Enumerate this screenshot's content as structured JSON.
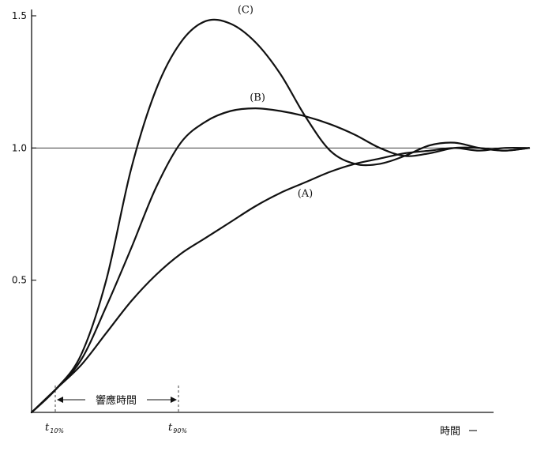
{
  "chart_data": {
    "type": "line",
    "xlabel": "時間",
    "ylabel": "",
    "ylim": [
      0,
      1.5
    ],
    "y_ticks": [
      {
        "value": 0.5,
        "label": "0.5"
      },
      {
        "value": 1.0,
        "label": "1.0"
      },
      {
        "value": 1.5,
        "label": "1.5"
      }
    ],
    "reference_line": 1.0,
    "series": [
      {
        "name": "(A)",
        "points": [
          [
            0,
            0
          ],
          [
            0.05,
            0.09
          ],
          [
            0.1,
            0.18
          ],
          [
            0.15,
            0.3
          ],
          [
            0.2,
            0.42
          ],
          [
            0.25,
            0.52
          ],
          [
            0.3,
            0.6
          ],
          [
            0.35,
            0.66
          ],
          [
            0.4,
            0.72
          ],
          [
            0.45,
            0.78
          ],
          [
            0.5,
            0.83
          ],
          [
            0.55,
            0.87
          ],
          [
            0.6,
            0.91
          ],
          [
            0.65,
            0.94
          ],
          [
            0.7,
            0.96
          ],
          [
            0.75,
            0.98
          ],
          [
            0.8,
            0.99
          ],
          [
            0.85,
            1.0
          ],
          [
            0.9,
            0.99
          ],
          [
            0.95,
            1.0
          ],
          [
            1.0,
            1.0
          ]
        ]
      },
      {
        "name": "(B)",
        "points": [
          [
            0,
            0
          ],
          [
            0.05,
            0.09
          ],
          [
            0.1,
            0.2
          ],
          [
            0.15,
            0.4
          ],
          [
            0.2,
            0.62
          ],
          [
            0.25,
            0.85
          ],
          [
            0.3,
            1.02
          ],
          [
            0.35,
            1.1
          ],
          [
            0.4,
            1.14
          ],
          [
            0.45,
            1.15
          ],
          [
            0.5,
            1.14
          ],
          [
            0.55,
            1.12
          ],
          [
            0.6,
            1.09
          ],
          [
            0.65,
            1.05
          ],
          [
            0.7,
            1.0
          ],
          [
            0.75,
            0.97
          ],
          [
            0.8,
            0.98
          ],
          [
            0.85,
            1.0
          ],
          [
            0.9,
            1.0
          ],
          [
            0.95,
            0.99
          ],
          [
            1.0,
            1.0
          ]
        ]
      },
      {
        "name": "(C)",
        "points": [
          [
            0,
            0
          ],
          [
            0.05,
            0.09
          ],
          [
            0.1,
            0.22
          ],
          [
            0.15,
            0.5
          ],
          [
            0.2,
            0.92
          ],
          [
            0.25,
            1.22
          ],
          [
            0.3,
            1.4
          ],
          [
            0.35,
            1.48
          ],
          [
            0.4,
            1.47
          ],
          [
            0.45,
            1.4
          ],
          [
            0.5,
            1.28
          ],
          [
            0.55,
            1.12
          ],
          [
            0.6,
            0.99
          ],
          [
            0.65,
            0.94
          ],
          [
            0.7,
            0.94
          ],
          [
            0.75,
            0.97
          ],
          [
            0.8,
            1.01
          ],
          [
            0.85,
            1.02
          ],
          [
            0.9,
            1.0
          ],
          [
            0.95,
            0.99
          ],
          [
            1.0,
            1.0
          ]
        ]
      }
    ],
    "annotations": {
      "response_time_label": "響應時間",
      "t10_main": "t",
      "t10_sub": "10%",
      "t90_main": "t",
      "t90_sub": "90%"
    }
  }
}
